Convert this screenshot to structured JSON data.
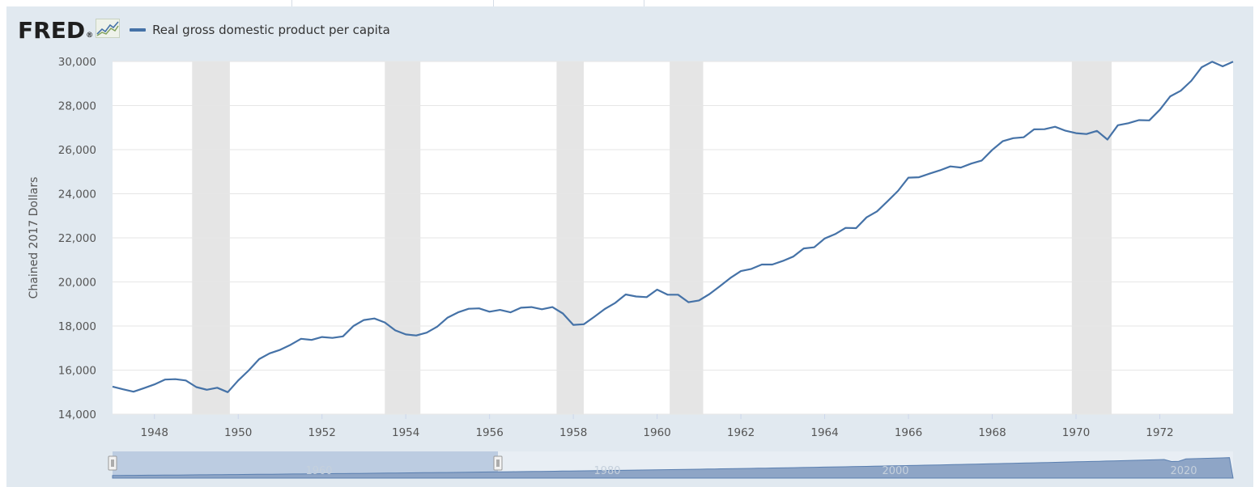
{
  "legend": {
    "label": "Real gross domestic product per capita",
    "color": "#4572a7"
  },
  "logo": {
    "text": "FRED",
    "icon": "line-chart-icon"
  },
  "colors": {
    "line": "#4572a7",
    "panel": "#e1e9f0",
    "plot_bg": "#ffffff",
    "recession": "#e5e5e5",
    "grid": "#e6e6e6",
    "navigator_fill": "#8ea5c6"
  },
  "chart_data": {
    "type": "line",
    "ylabel": "Chained 2017 Dollars",
    "xlabel": "",
    "ylim": [
      14000,
      30000
    ],
    "xlim": [
      1947.0,
      1973.75
    ],
    "yticks": [
      14000,
      16000,
      18000,
      20000,
      22000,
      24000,
      26000,
      28000,
      30000
    ],
    "ytick_labels": [
      "14,000",
      "16,000",
      "18,000",
      "20,000",
      "22,000",
      "24,000",
      "26,000",
      "28,000",
      "30,000"
    ],
    "xticks": [
      1948,
      1950,
      1952,
      1954,
      1956,
      1958,
      1960,
      1962,
      1964,
      1966,
      1968,
      1970,
      1972
    ],
    "xtick_labels": [
      "1948",
      "1950",
      "1952",
      "1954",
      "1956",
      "1958",
      "1960",
      "1962",
      "1964",
      "1966",
      "1968",
      "1970",
      "1972"
    ],
    "grid": true,
    "legend_position": "top-left",
    "recessions": [
      [
        1948.9,
        1949.8
      ],
      [
        1953.5,
        1954.35
      ],
      [
        1957.6,
        1958.25
      ],
      [
        1960.3,
        1961.1
      ],
      [
        1969.9,
        1970.85
      ]
    ],
    "series": [
      {
        "name": "Real gross domestic product per capita",
        "x": [
          1947.0,
          1947.25,
          1947.5,
          1947.75,
          1948.0,
          1948.25,
          1948.5,
          1948.75,
          1949.0,
          1949.25,
          1949.5,
          1949.75,
          1950.0,
          1950.25,
          1950.5,
          1950.75,
          1951.0,
          1951.25,
          1951.5,
          1951.75,
          1952.0,
          1952.25,
          1952.5,
          1952.75,
          1953.0,
          1953.25,
          1953.5,
          1953.75,
          1954.0,
          1954.25,
          1954.5,
          1954.75,
          1955.0,
          1955.25,
          1955.5,
          1955.75,
          1956.0,
          1956.25,
          1956.5,
          1956.75,
          1957.0,
          1957.25,
          1957.5,
          1957.75,
          1958.0,
          1958.25,
          1958.5,
          1958.75,
          1959.0,
          1959.25,
          1959.5,
          1959.75,
          1960.0,
          1960.25,
          1960.5,
          1960.75,
          1961.0,
          1961.25,
          1961.5,
          1961.75,
          1962.0,
          1962.25,
          1962.5,
          1962.75,
          1963.0,
          1963.25,
          1963.5,
          1963.75,
          1964.0,
          1964.25,
          1964.5,
          1964.75,
          1965.0,
          1965.25,
          1965.5,
          1965.75,
          1966.0,
          1966.25,
          1966.5,
          1966.75,
          1967.0,
          1967.25,
          1967.5,
          1967.75,
          1968.0,
          1968.25,
          1968.5,
          1968.75,
          1969.0,
          1969.25,
          1969.5,
          1969.75,
          1970.0,
          1970.25,
          1970.5,
          1970.75,
          1971.0,
          1971.25,
          1971.5,
          1971.75,
          1972.0,
          1972.25,
          1972.5,
          1972.75,
          1973.0,
          1973.25,
          1973.5,
          1973.75
        ],
        "values": [
          15250,
          15130,
          15020,
          15180,
          15350,
          15570,
          15590,
          15530,
          15230,
          15110,
          15200,
          15000,
          15530,
          15980,
          16500,
          16760,
          16920,
          17150,
          17420,
          17370,
          17500,
          17460,
          17530,
          18000,
          18270,
          18340,
          18160,
          17800,
          17620,
          17570,
          17700,
          17970,
          18380,
          18620,
          18780,
          18800,
          18650,
          18730,
          18620,
          18830,
          18860,
          18760,
          18860,
          18570,
          18050,
          18080,
          18420,
          18770,
          19050,
          19430,
          19340,
          19310,
          19650,
          19420,
          19420,
          19080,
          19160,
          19450,
          19810,
          20180,
          20490,
          20590,
          20790,
          20790,
          20950,
          21150,
          21520,
          21570,
          21970,
          22170,
          22450,
          22440,
          22930,
          23200,
          23660,
          24130,
          24730,
          24750,
          24910,
          25060,
          25240,
          25190,
          25370,
          25510,
          25990,
          26380,
          26520,
          26560,
          26920,
          26930,
          27040,
          26860,
          26750,
          26710,
          26850,
          26460,
          27110,
          27200,
          27340,
          27330,
          27810,
          28420,
          28670,
          29120,
          29740,
          29990,
          29780,
          29990
        ]
      }
    ]
  },
  "navigator": {
    "tick_labels": [
      "1960",
      "1980",
      "2000",
      "2020"
    ]
  }
}
